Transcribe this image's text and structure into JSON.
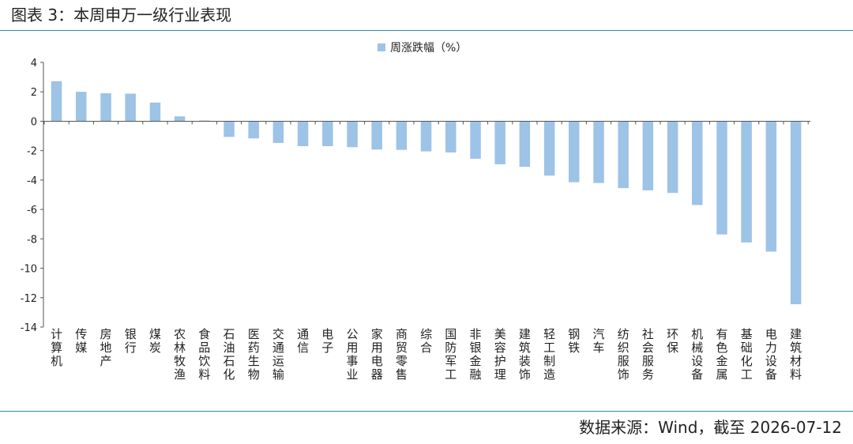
{
  "figure": {
    "title": "图表 3：本周申万一级行业表现",
    "source": "数据来源：Wind，截至 2026-07-12"
  },
  "chart_data": {
    "type": "bar",
    "categories": [
      "计算机",
      "传媒",
      "房地产",
      "银行",
      "煤炭",
      "农林牧渔",
      "食品饮料",
      "石油石化",
      "医药生物",
      "交通运输",
      "通信",
      "电子",
      "公用事业",
      "家用电器",
      "商贸零售",
      "综合",
      "国防军工",
      "非银金融",
      "美容护理",
      "建筑装饰",
      "轻工制造",
      "钢铁",
      "汽车",
      "纺织服饰",
      "社会服务",
      "环保",
      "机械设备",
      "有色金属",
      "基础化工",
      "电力设备",
      "建筑材料"
    ],
    "series": [
      {
        "name": "周涨跌幅（%）",
        "values": [
          2.72,
          2.0,
          1.9,
          1.88,
          1.27,
          0.33,
          0.05,
          -1.07,
          -1.17,
          -1.48,
          -1.7,
          -1.7,
          -1.77,
          -1.93,
          -1.95,
          -2.05,
          -2.13,
          -2.55,
          -2.93,
          -3.1,
          -3.7,
          -4.15,
          -4.2,
          -4.55,
          -4.7,
          -4.88,
          -5.7,
          -7.7,
          -8.25,
          -8.87,
          -12.45
        ]
      }
    ],
    "yticks": [
      "4",
      "2",
      "0",
      "-2",
      "-4",
      "-6",
      "-8",
      "-10",
      "-12",
      "-14"
    ],
    "ylim": [
      -14,
      4
    ],
    "xlabel": "",
    "ylabel": "",
    "legend_position": "top-center",
    "grid": false,
    "bar_color": "#9dc3e6"
  }
}
